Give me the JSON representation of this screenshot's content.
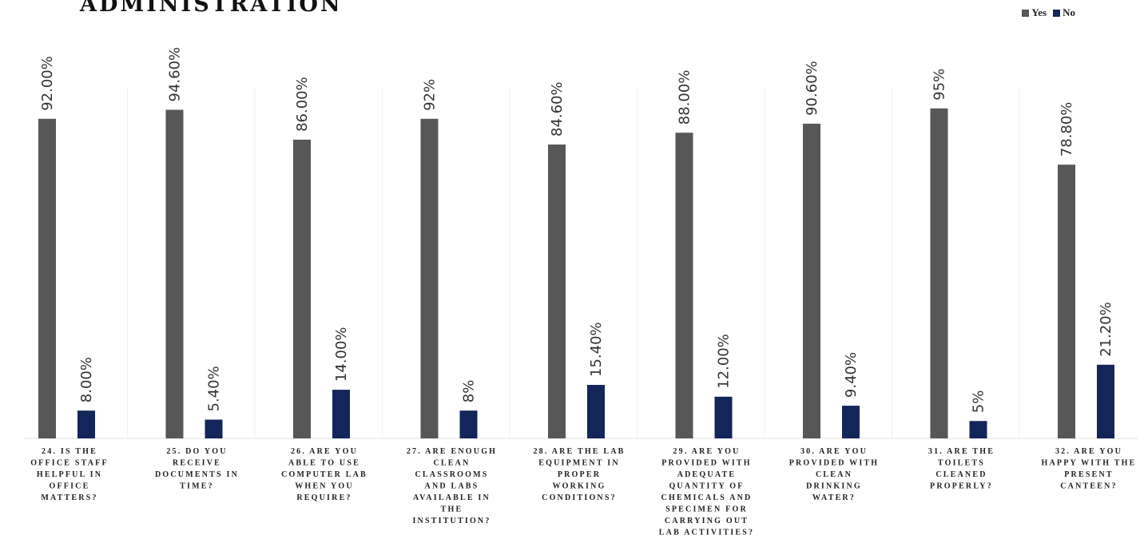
{
  "chart_data": {
    "type": "bar",
    "title": "ADMINISTRATION",
    "legend": {
      "position": "top-right",
      "items": [
        "Yes",
        "No"
      ]
    },
    "colors": {
      "Yes": "#575757",
      "No": "#12265a"
    },
    "ylim": [
      0,
      100
    ],
    "grid": false,
    "categories": [
      "24. IS THE OFFICE STAFF HELPFUL IN OFFICE MATTERS?",
      "25. DO YOU RECEIVE DOCUMENTS IN TIME?",
      "26. ARE YOU ABLE TO USE COMPUTER LAB WHEN YOU REQUIRE?",
      "27. ARE ENOUGH CLEAN CLASSROOMS AND LABS AVAILABLE IN THE INSTITUTION?",
      "28. ARE THE LAB EQUIPMENT IN PROPER WORKING CONDITIONS?",
      "29. ARE YOU PROVIDED WITH ADEQUATE QUANTITY OF CHEMICALS AND SPECIMEN FOR CARRYING OUT LAB ACTIVITIES?",
      "30. ARE YOU PROVIDED WITH CLEAN DRINKING WATER?",
      "31. ARE THE TOILETS CLEANED PROPERLY?",
      "32. ARE YOU HAPPY WITH THE PRESENT CANTEEN?"
    ],
    "category_lines": [
      [
        "24. IS THE",
        "OFFICE STAFF",
        "HELPFUL IN",
        "OFFICE",
        "MATTERS?"
      ],
      [
        "25. DO YOU",
        "RECEIVE",
        "DOCUMENTS IN",
        "TIME?"
      ],
      [
        "26. ARE YOU",
        "ABLE TO USE",
        "COMPUTER LAB",
        "WHEN YOU",
        "REQUIRE?"
      ],
      [
        "27. ARE ENOUGH",
        "CLEAN",
        "CLASSROOMS",
        "AND LABS",
        "AVAILABLE IN",
        "THE",
        "INSTITUTION?"
      ],
      [
        "28. ARE THE LAB",
        "EQUIPMENT IN",
        "PROPER",
        "WORKING",
        "CONDITIONS?"
      ],
      [
        "29. ARE YOU",
        "PROVIDED WITH",
        "ADEQUATE",
        "QUANTITY OF",
        "CHEMICALS AND",
        "SPECIMEN FOR",
        "CARRYING OUT",
        "LAB ACTIVITIES?"
      ],
      [
        "30. ARE YOU",
        "PROVIDED WITH",
        "CLEAN",
        "DRINKING",
        "WATER?"
      ],
      [
        "31. ARE THE",
        "TOILETS",
        "CLEANED",
        "PROPERLY?"
      ],
      [
        "32. ARE YOU",
        "HAPPY WITH THE",
        "PRESENT",
        "CANTEEN?"
      ]
    ],
    "series": [
      {
        "name": "Yes",
        "values": [
          92.0,
          94.6,
          86.0,
          92,
          84.6,
          88.0,
          90.6,
          95,
          78.8
        ],
        "labels": [
          "92.00%",
          "94.60%",
          "86.00%",
          "92%",
          "84.60%",
          "88.00%",
          "90.60%",
          "95%",
          "78.80%"
        ]
      },
      {
        "name": "No",
        "values": [
          8.0,
          5.4,
          14.0,
          8,
          15.4,
          12.0,
          9.4,
          5,
          21.2
        ],
        "labels": [
          "8.00%",
          "5.40%",
          "14.00%",
          "8%",
          "15.40%",
          "12.00%",
          "9.40%",
          "5%",
          "21.20%"
        ]
      }
    ]
  }
}
